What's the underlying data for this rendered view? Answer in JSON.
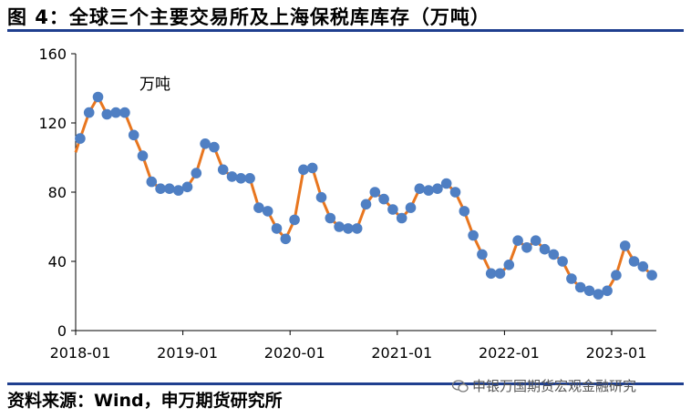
{
  "figure": {
    "title": "图 4：全球三个主要交易所及上海保税库库存（万吨）",
    "source": "资料来源：Wind，申万期货研究所",
    "watermark": "申银万国期货宏观金融研究"
  },
  "chart_data": {
    "type": "line",
    "unit_label": "万吨",
    "ylim": [
      0,
      160
    ],
    "yticks": [
      "0",
      "40",
      "80",
      "120",
      "160"
    ],
    "xticks": [
      "2018-01",
      "2019-01",
      "2020-01",
      "2021-01",
      "2022-01",
      "2023-01"
    ],
    "grid": false,
    "legend": "none",
    "line_color": "#e8761f",
    "marker_color": "#4f7fc3",
    "series": [
      {
        "x": [
          "2018-01",
          "2018-02",
          "2018-03",
          "2018-04",
          "2018-05",
          "2018-06",
          "2018-07",
          "2018-08",
          "2018-09",
          "2018-10",
          "2018-11",
          "2018-12",
          "2019-01",
          "2019-02",
          "2019-03",
          "2019-04",
          "2019-05",
          "2019-06",
          "2019-07",
          "2019-08",
          "2019-09",
          "2019-10",
          "2019-11",
          "2019-12",
          "2020-01",
          "2020-02",
          "2020-03",
          "2020-04",
          "2020-05",
          "2020-06",
          "2020-07",
          "2020-08",
          "2020-09",
          "2020-10",
          "2020-11",
          "2020-12",
          "2021-01",
          "2021-02",
          "2021-03",
          "2021-04",
          "2021-05",
          "2021-06",
          "2021-07",
          "2021-08",
          "2021-09",
          "2021-10",
          "2021-11",
          "2021-12",
          "2022-01",
          "2022-02",
          "2022-03",
          "2022-04",
          "2022-05",
          "2022-06",
          "2022-07",
          "2022-08",
          "2022-09",
          "2022-10",
          "2022-11",
          "2022-12",
          "2023-01",
          "2023-02",
          "2023-03",
          "2023-04",
          "2023-05"
        ],
        "values": [
          111,
          126,
          135,
          125,
          126,
          126,
          113,
          101,
          86,
          82,
          82,
          81,
          83,
          91,
          108,
          106,
          93,
          89,
          88,
          88,
          71,
          69,
          59,
          53,
          64,
          93,
          94,
          77,
          65,
          60,
          59,
          59,
          73,
          80,
          76,
          70,
          65,
          71,
          82,
          81,
          82,
          85,
          80,
          69,
          55,
          44,
          33,
          33,
          38,
          52,
          48,
          52,
          47,
          44,
          40,
          30,
          25,
          23,
          21,
          23,
          32,
          49,
          40,
          37,
          32
        ]
      }
    ]
  }
}
